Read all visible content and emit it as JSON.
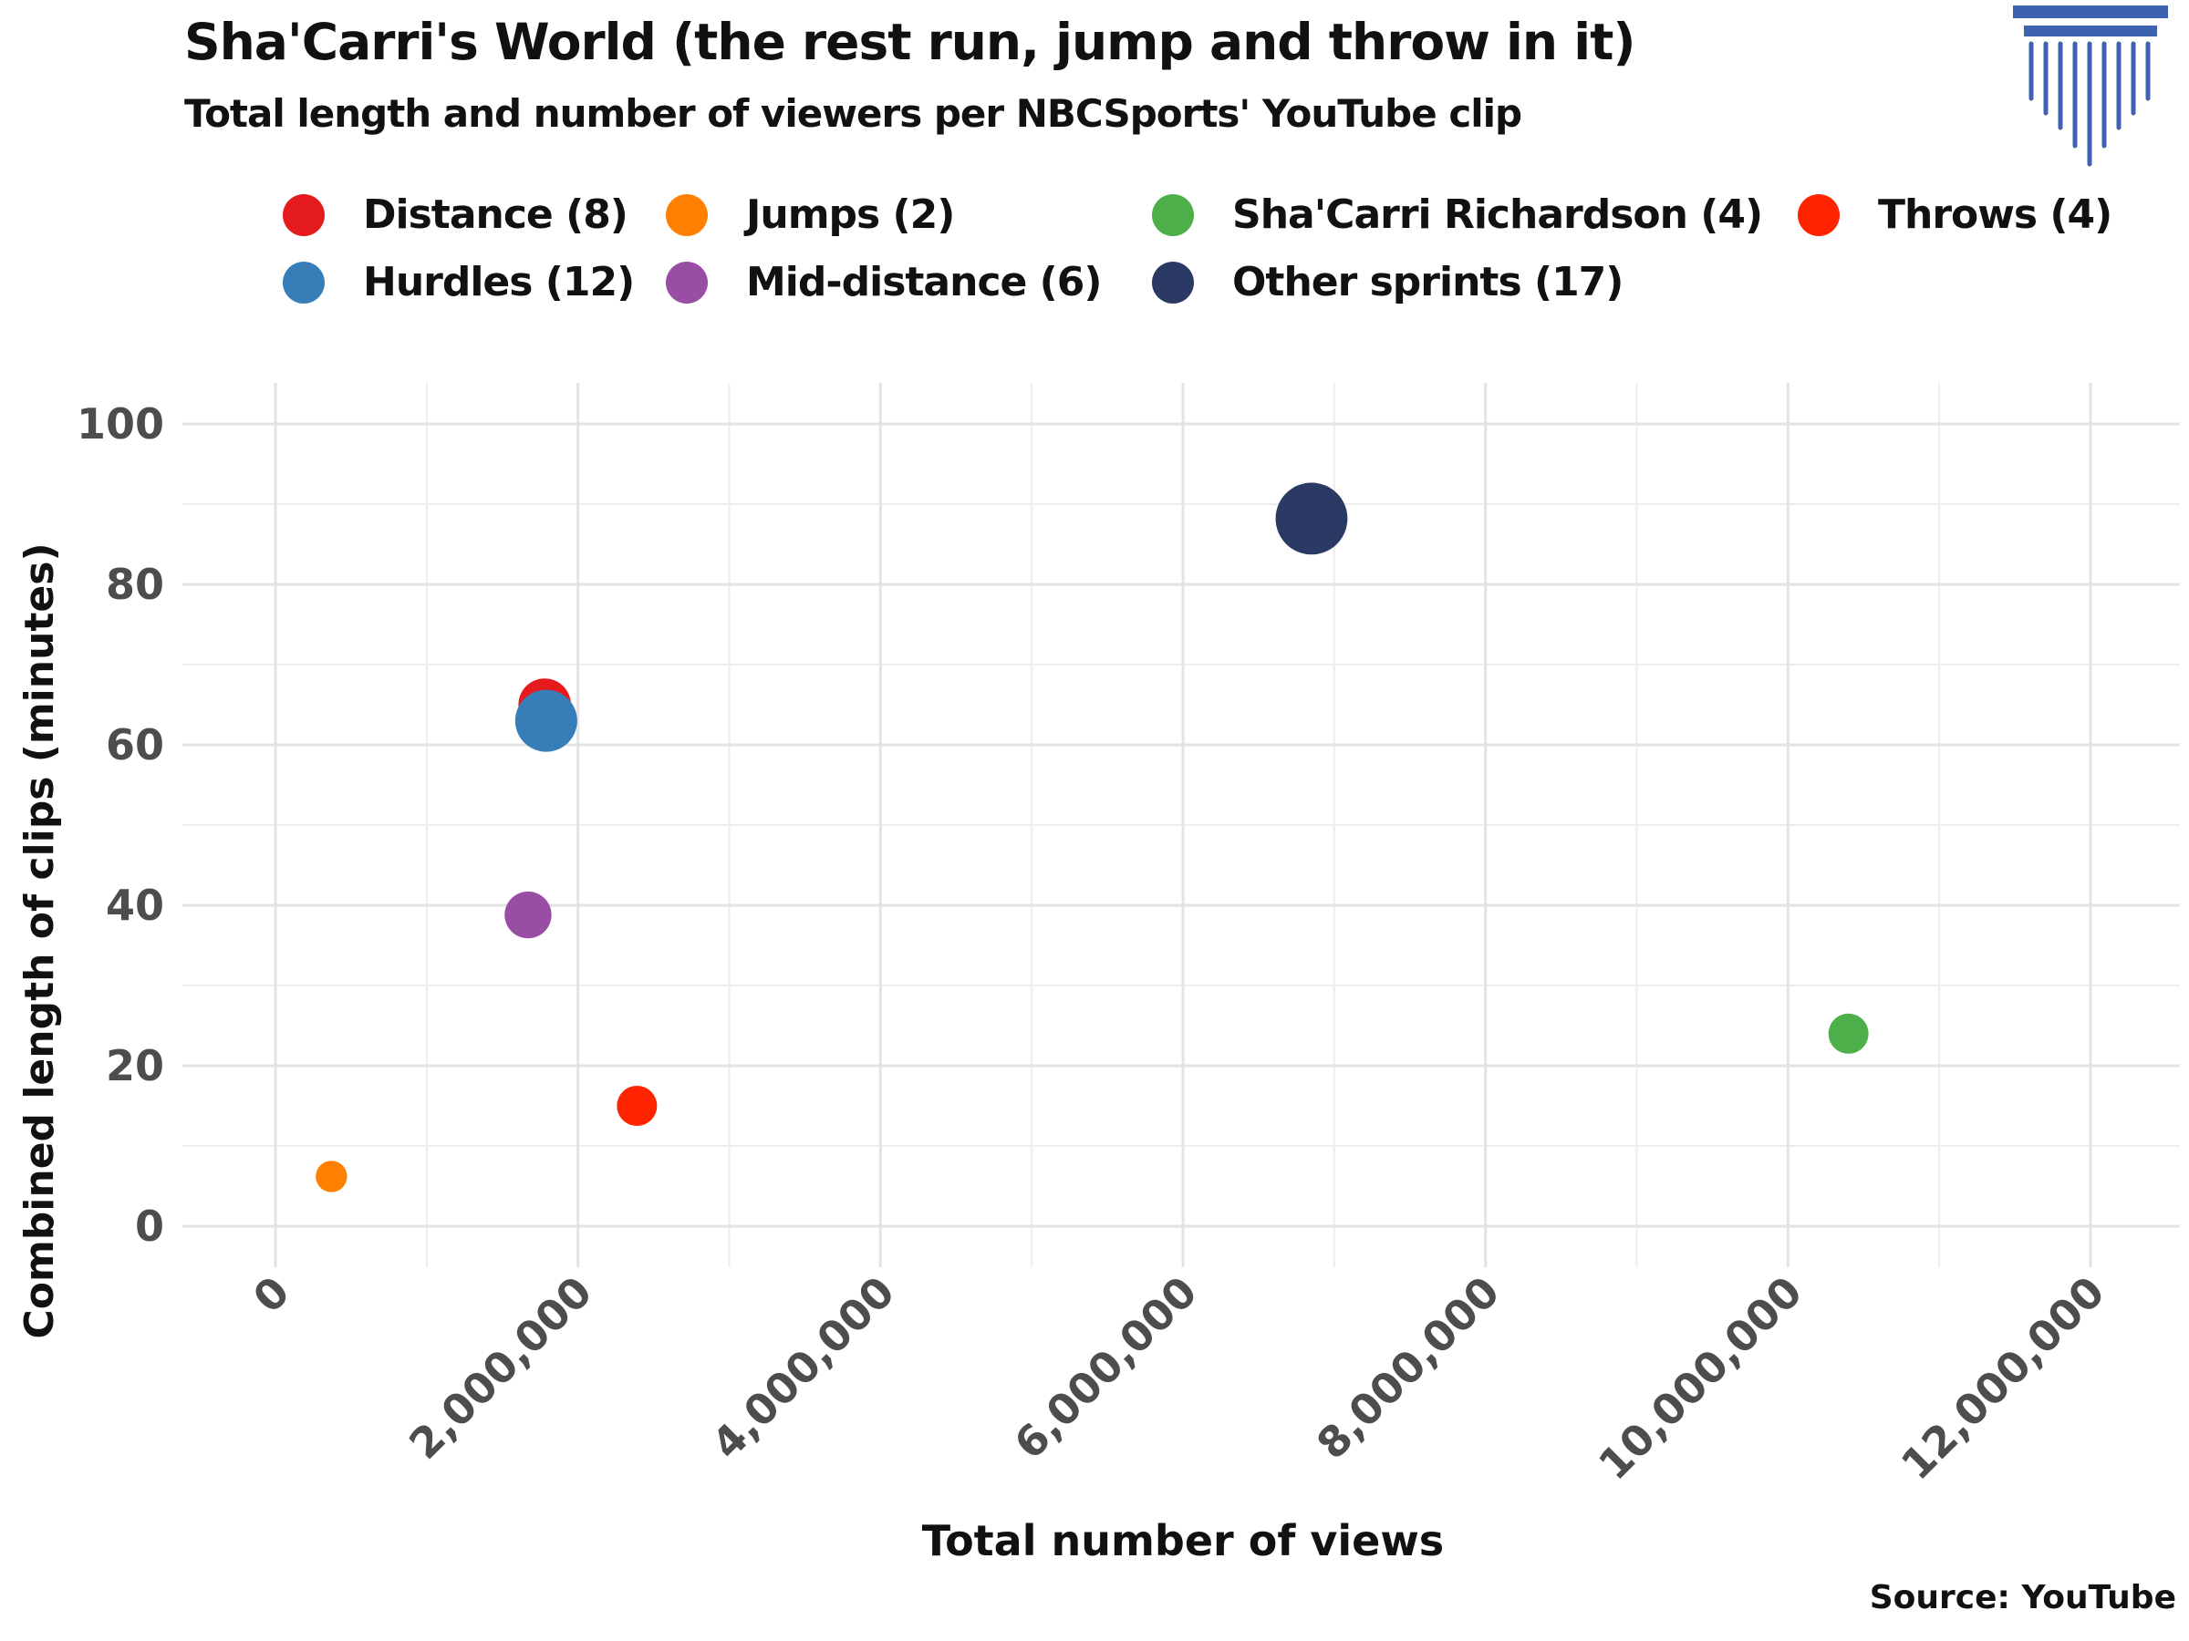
{
  "title": "Sha'Carri's World (the rest run, jump and throw in it)",
  "subtitle": "Total length and number of viewers per NBCSports' YouTube clip",
  "source": "Source: YouTube",
  "legend": [
    {
      "label": "Distance (8)",
      "color": "#e41a1c"
    },
    {
      "label": "Jumps (2)",
      "color": "#ff7f00"
    },
    {
      "label": "Sha'Carri Richardson (4)",
      "color": "#4daf4a"
    },
    {
      "label": "Throws (4)",
      "color": "#ff2400"
    },
    {
      "label": "Hurdles (12)",
      "color": "#377eb8"
    },
    {
      "label": "Mid-distance (6)",
      "color": "#984ea3"
    },
    {
      "label": "Other sprints (17)",
      "color": "#2b3a64"
    }
  ],
  "logo_icon": "column-pillar-icon",
  "chart_data": {
    "type": "scatter",
    "title": "Sha'Carri's World (the rest run, jump and throw in it)",
    "subtitle": "Total length and number of viewers per NBCSports' YouTube clip",
    "xlabel": "Total number of views",
    "ylabel": "Combined length of clips (minutes)",
    "xlim": [
      -600000,
      12400000
    ],
    "ylim": [
      -5,
      105
    ],
    "x_ticks": [
      0,
      2000000,
      4000000,
      6000000,
      8000000,
      10000000,
      12000000
    ],
    "x_tick_labels": [
      "0",
      "2,000,000",
      "4,000,000",
      "6,000,000",
      "8,000,000",
      "10,000,000",
      "12,000,000"
    ],
    "y_ticks": [
      0,
      20,
      40,
      60,
      80,
      100
    ],
    "y_tick_labels": [
      "0",
      "20",
      "40",
      "60",
      "80",
      "100"
    ],
    "grid": true,
    "legend_position": "top",
    "size_variable": "number of clips",
    "series": [
      {
        "name": "Distance (8)",
        "x": 1780000,
        "y": 65,
        "clips": 8,
        "color": "#e41a1c"
      },
      {
        "name": "Jumps (2)",
        "x": 370000,
        "y": 6.2,
        "clips": 2,
        "color": "#ff7f00"
      },
      {
        "name": "Sha'Carri Richardson (4)",
        "x": 10400000,
        "y": 24,
        "clips": 4,
        "color": "#4daf4a"
      },
      {
        "name": "Throws (4)",
        "x": 2390000,
        "y": 15,
        "clips": 4,
        "color": "#ff2400"
      },
      {
        "name": "Hurdles (12)",
        "x": 1790000,
        "y": 63,
        "clips": 12,
        "color": "#377eb8"
      },
      {
        "name": "Mid-distance (6)",
        "x": 1670000,
        "y": 38.8,
        "clips": 6,
        "color": "#984ea3"
      },
      {
        "name": "Other sprints (17)",
        "x": 6850000,
        "y": 88.2,
        "clips": 17,
        "color": "#2b3a64"
      }
    ]
  }
}
